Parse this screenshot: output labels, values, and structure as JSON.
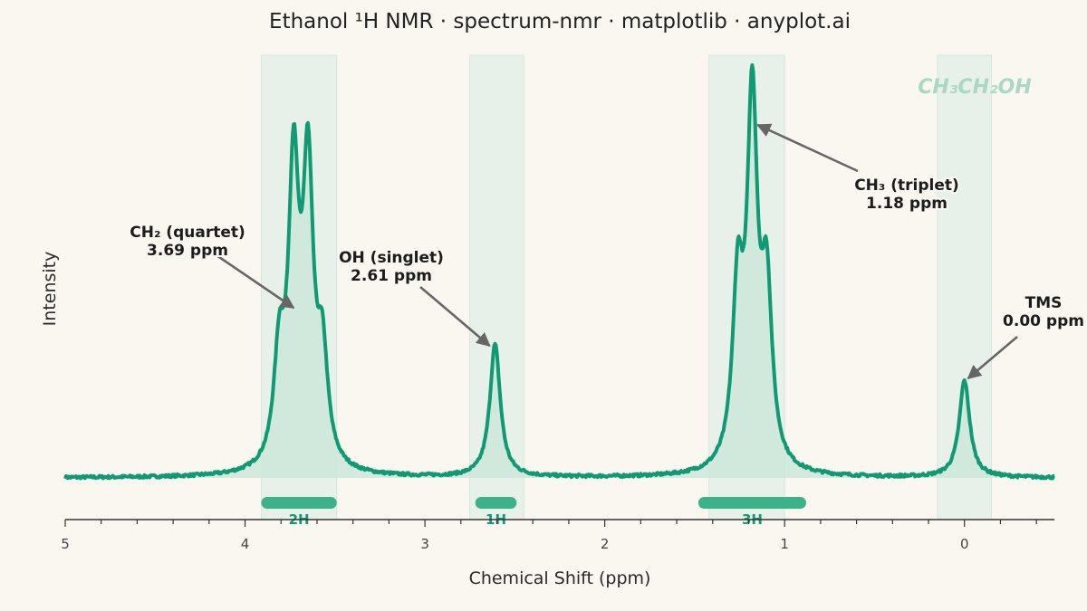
{
  "chart_data": {
    "type": "line",
    "title": "Ethanol ¹H NMR · spectrum-nmr · matplotlib · anyplot.ai",
    "xlabel": "Chemical Shift (ppm)",
    "ylabel": "Intensity",
    "xlim": [
      5,
      -0.5
    ],
    "x_reversed": true,
    "xticks": [
      5,
      4,
      3,
      2,
      1,
      0
    ],
    "xtick_labels": [
      "5",
      "4",
      "3",
      "2",
      "1",
      "0"
    ],
    "grid": false,
    "line_color": "#0f9a73",
    "fill_color": "#cde8db",
    "band_color": "#e8f1e9",
    "watermark": "CH₃CH₂OH",
    "peaks": [
      {
        "group": "CH₂",
        "multiplicity": "quartet",
        "center": 3.69,
        "lines": [
          3.81,
          3.73,
          3.65,
          3.57
        ],
        "heights": [
          0.29,
          0.8,
          0.8,
          0.29
        ]
      },
      {
        "group": "OH",
        "multiplicity": "singlet",
        "center": 2.61,
        "lines": [
          2.61
        ],
        "heights": [
          0.37
        ]
      },
      {
        "group": "CH₃",
        "multiplicity": "triplet",
        "center": 1.18,
        "lines": [
          1.26,
          1.18,
          1.1
        ],
        "heights": [
          0.48,
          1.0,
          0.48
        ]
      },
      {
        "group": "TMS",
        "multiplicity": "singlet",
        "center": 0.0,
        "lines": [
          0.0
        ],
        "heights": [
          0.27
        ]
      }
    ],
    "bands": [
      {
        "from": 3.91,
        "to": 3.49
      },
      {
        "from": 2.75,
        "to": 2.45
      },
      {
        "from": 1.42,
        "to": 1.0
      },
      {
        "from": 0.15,
        "to": -0.15
      }
    ],
    "annotations": [
      {
        "line1": "CH₂ (quartet)",
        "line2": "3.69 ppm",
        "target_x": 3.69
      },
      {
        "line1": "OH (singlet)",
        "line2": "2.61 ppm",
        "target_x": 2.61
      },
      {
        "line1": "CH₃ (triplet)",
        "line2": "1.18 ppm",
        "target_x": 1.18
      },
      {
        "line1": "TMS",
        "line2": "0.00 ppm",
        "target_x": 0.0
      }
    ],
    "integrations": [
      {
        "label": "2H",
        "from": 3.91,
        "to": 3.49
      },
      {
        "label": "1H",
        "from": 2.72,
        "to": 2.49
      },
      {
        "label": "3H",
        "from": 1.48,
        "to": 0.88
      }
    ]
  }
}
